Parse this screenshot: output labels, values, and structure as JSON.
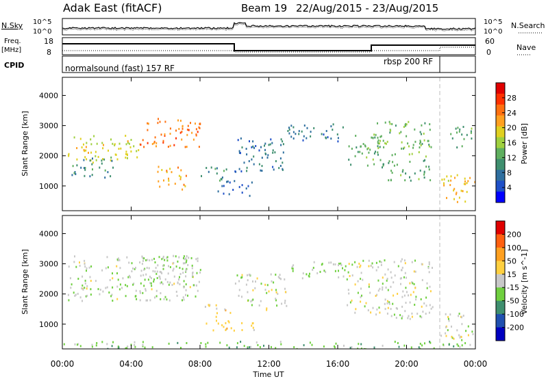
{
  "header": {
    "title": "Adak East (fitACF)",
    "beam": "Beam 19",
    "date_range": "22/Aug/2015 - 23/Aug/2015"
  },
  "noise_panel": {
    "left_label": "N.Sky",
    "right_label": "N.Search",
    "tick_top": "10^5",
    "tick_bottom": "10^0"
  },
  "freq_panel": {
    "label_line1": "Freq.",
    "label_line2": "[MHz]",
    "right_label": "Nave",
    "left_ticks": [
      "18",
      "8"
    ],
    "right_ticks": [
      "60",
      "0"
    ]
  },
  "cpid_panel": {
    "label": "CPID",
    "programs": [
      {
        "name": "normalsound (fast) 157 RF",
        "start_hour": 0,
        "end_hour": 21.9
      },
      {
        "name": "rbsp 200 RF",
        "start_hour": 21.9,
        "end_hour": 24
      }
    ]
  },
  "chart_data": [
    {
      "type": "heatmap",
      "variable": "power",
      "ylabel": "Slant Range [km]",
      "xlabel": "Time UT",
      "ylim": [
        180,
        4600
      ],
      "yticks": [
        "1000",
        "2000",
        "3000",
        "4000"
      ],
      "xlim_hours": [
        0,
        24
      ],
      "xticks": [
        "00:00",
        "04:00",
        "08:00",
        "12:00",
        "16:00",
        "20:00",
        "00:00"
      ],
      "colorbar": {
        "label": "Power [dB]",
        "min": 0,
        "max": 32,
        "ticks": [
          "4",
          "8",
          "12",
          "16",
          "20",
          "24",
          "28"
        ],
        "colors": [
          "#0000ff",
          "#1f50c8",
          "#2f6f9f",
          "#3f8f6f",
          "#5faf5f",
          "#9fd03f",
          "#e0d020",
          "#ffa020",
          "#ff7010",
          "#ff3000",
          "#e00000"
        ]
      },
      "regions": [
        {
          "t": [
            0.3,
            4.5
          ],
          "r": [
            1800,
            2700
          ],
          "value": 18
        },
        {
          "t": [
            4.5,
            8.0
          ],
          "r": [
            2300,
            3300
          ],
          "value": 24
        },
        {
          "t": [
            0.5,
            3.0
          ],
          "r": [
            1300,
            2000
          ],
          "value": 10
        },
        {
          "t": [
            5.5,
            7.2
          ],
          "r": [
            900,
            1700
          ],
          "value": 22
        },
        {
          "t": [
            8.0,
            9.5
          ],
          "r": [
            1200,
            1700
          ],
          "value": 10
        },
        {
          "t": [
            9.0,
            11.0
          ],
          "r": [
            700,
            1200
          ],
          "value": 6
        },
        {
          "t": [
            10.0,
            13.0
          ],
          "r": [
            1500,
            2700
          ],
          "value": 8
        },
        {
          "t": [
            13.0,
            16.5
          ],
          "r": [
            2500,
            3100
          ],
          "value": 8
        },
        {
          "t": [
            16.5,
            18.5
          ],
          "r": [
            1700,
            2700
          ],
          "value": 12
        },
        {
          "t": [
            18.0,
            21.5
          ],
          "r": [
            2000,
            3200
          ],
          "value": 14
        },
        {
          "t": [
            18.5,
            21.5
          ],
          "r": [
            1200,
            1900
          ],
          "value": 12
        },
        {
          "t": [
            21.9,
            24.0
          ],
          "r": [
            500,
            1400
          ],
          "value": 20
        },
        {
          "t": [
            22.5,
            24.0
          ],
          "r": [
            2300,
            3000
          ],
          "value": 12
        }
      ]
    },
    {
      "type": "heatmap",
      "variable": "velocity",
      "ylabel": "Slant Range [km]",
      "xlabel": "Time UT",
      "ylim": [
        180,
        4600
      ],
      "yticks": [
        "1000",
        "2000",
        "3000",
        "4000"
      ],
      "xlim_hours": [
        0,
        24
      ],
      "xticks": [
        "00:00",
        "04:00",
        "08:00",
        "12:00",
        "16:00",
        "20:00",
        "00:00"
      ],
      "colorbar": {
        "label": "Velocity [m s^-1]",
        "min": -250,
        "max": 250,
        "ticks": [
          "200",
          "100",
          "50",
          "15",
          "-15",
          "-50",
          "-100",
          "-200"
        ],
        "colors": [
          "#0000c0",
          "#2050b0",
          "#3f8f6f",
          "#6fcf3f",
          "#c8c8c8",
          "#ffd040",
          "#ffa020",
          "#ff6010",
          "#e00000"
        ]
      },
      "regions": [
        {
          "t": [
            0.3,
            8.0
          ],
          "r": [
            1800,
            3300
          ],
          "value": -10
        },
        {
          "t": [
            4.5,
            8.0
          ],
          "r": [
            2300,
            3300
          ],
          "value": -30
        },
        {
          "t": [
            8.2,
            9.8
          ],
          "r": [
            800,
            1700
          ],
          "value": 60
        },
        {
          "t": [
            9.8,
            11.5
          ],
          "r": [
            800,
            1100
          ],
          "value": 30
        },
        {
          "t": [
            10.0,
            13.0
          ],
          "r": [
            1500,
            2700
          ],
          "value": -5
        },
        {
          "t": [
            13.0,
            16.5
          ],
          "r": [
            2500,
            3100
          ],
          "value": -20
        },
        {
          "t": [
            16.5,
            21.5
          ],
          "r": [
            1200,
            3200
          ],
          "value": 0
        },
        {
          "t": [
            21.9,
            24.0
          ],
          "r": [
            500,
            1400
          ],
          "value": -5
        },
        {
          "t": [
            0.0,
            24.0
          ],
          "r": [
            200,
            450
          ],
          "value": -60
        }
      ]
    }
  ]
}
